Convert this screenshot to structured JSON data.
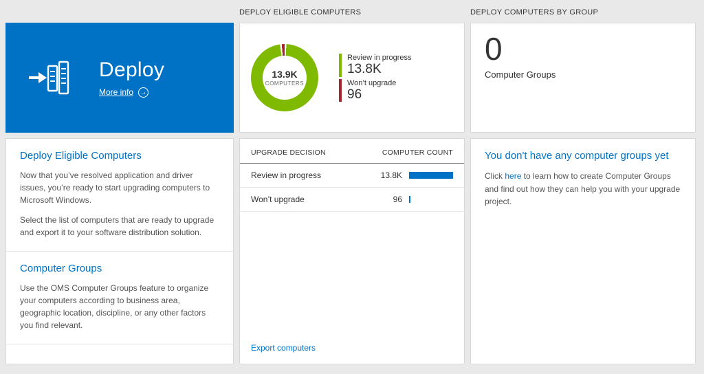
{
  "columns": {
    "middle_header": "DEPLOY ELIGIBLE COMPUTERS",
    "right_header": "DEPLOY COMPUTERS BY GROUP"
  },
  "deploy_tile": {
    "title": "Deploy",
    "more_info_label": "More info",
    "arrow_glyph": "→",
    "background": "#0072c6"
  },
  "left_panel": {
    "section1": {
      "heading": "Deploy Eligible Computers",
      "p1": "Now that you’ve resolved application and driver issues, you’re ready to start upgrading computers to Microsoft Windows.",
      "p2": "Select the list of computers that are ready to upgrade and export it to your software distribution solution."
    },
    "section2": {
      "heading": "Computer Groups",
      "p1": "Use the OMS Computer Groups feature to organize your computers according to business area, geographic location, discipline, or any other factors you find relevant."
    }
  },
  "chart_data": {
    "type": "pie",
    "title": "Deploy Eligible Computers",
    "donut_center_value": "13.9K",
    "donut_center_label": "COMPUTERS",
    "total_computers": 13900,
    "legend_position": "right",
    "series": [
      {
        "name": "Review in progress",
        "value": 13800,
        "display": "13.8K",
        "color": "#7fba00"
      },
      {
        "name": "Won’t upgrade",
        "value": 96,
        "display": "96",
        "color": "#a4262c"
      }
    ]
  },
  "middle_table": {
    "col_decision": "UPGRADE DECISION",
    "col_count": "COMPUTER COUNT",
    "rows": [
      {
        "label": "Review in progress",
        "value": "13.8K",
        "bar_pct": 100
      },
      {
        "label": "Won’t upgrade",
        "value": "96",
        "bar_pct": 3
      }
    ],
    "export_link": "Export computers"
  },
  "group_tile": {
    "count": "0",
    "label": "Computer Groups"
  },
  "right_panel": {
    "heading": "You don't have any computer groups yet",
    "text_before": "Click ",
    "link_text": "here",
    "text_after": " to learn how to create Computer Groups and find out how they can help you with your upgrade project."
  },
  "colors": {
    "accent_blue": "#0072c6",
    "green": "#7fba00",
    "red": "#a4262c",
    "page_background": "#e9e9e9"
  }
}
